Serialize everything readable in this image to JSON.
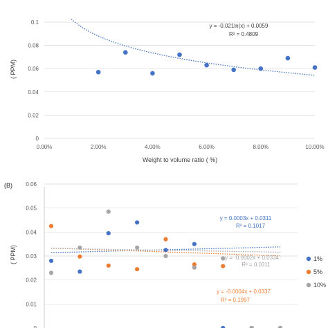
{
  "colors": {
    "blue": "#4472c4",
    "orange": "#ed7d31",
    "gray": "#a5a5a5",
    "grid": "#d9d9d9",
    "text": "#595959"
  },
  "chart_data": [
    {
      "type": "scatter",
      "panel_label": "",
      "xlabel": "Weight to volume ratio ( %)",
      "ylabel": "( PPM)",
      "xlim": [
        0,
        0.1
      ],
      "ylim": [
        0,
        0.1
      ],
      "x_ticks": [
        "0.00%",
        "2.00%",
        "4.00%",
        "6.00%",
        "8.00%",
        "10.00%"
      ],
      "y_ticks": [
        "0",
        "0.02",
        "0.04",
        "0.06",
        "0.08",
        "0.1"
      ],
      "grid": "horizontal",
      "series": [
        {
          "color": "#4472c4",
          "x": [
            0.02,
            0.03,
            0.04,
            0.05,
            0.06,
            0.07,
            0.08,
            0.09,
            0.1
          ],
          "y": [
            0.057,
            0.074,
            0.056,
            0.072,
            0.063,
            0.059,
            0.06,
            0.069,
            0.061
          ],
          "trendline": {
            "kind": "log",
            "a": -0.021,
            "b": 0.0059,
            "x_range": [
              0.01,
              0.1
            ],
            "equation": "y = -0.021ln(x) + 0.0059",
            "r2": "R² = 0.4809"
          }
        }
      ]
    },
    {
      "type": "scatter",
      "panel_label": "(B)",
      "xlabel": "",
      "ylabel": "( PPM)",
      "ylim": [
        0,
        0.06
      ],
      "y_ticks": [
        "0",
        "0.01",
        "0.02",
        "0.03",
        "0.04",
        "0.05",
        "0.06"
      ],
      "grid": "horizontal",
      "legend_position": "right",
      "series": [
        {
          "name": "1%",
          "color": "#4472c4",
          "x": [
            1,
            2,
            3,
            4,
            5,
            6,
            7,
            8,
            9
          ],
          "y": [
            0.028,
            0.0235,
            0.0395,
            0.044,
            0.0325,
            0.035,
            0,
            0,
            0
          ],
          "trendline": {
            "kind": "linear",
            "m": 0.0003,
            "b": 0.0311,
            "equation": "y = 0.0003x + 0.0311",
            "r2": "R² = 0.1017"
          }
        },
        {
          "name": "5%",
          "color": "#ed7d31",
          "x": [
            1,
            2,
            3,
            4,
            5,
            6,
            7,
            8,
            9
          ],
          "y": [
            0.0425,
            0.0298,
            0.026,
            0.0245,
            0.037,
            0.0265,
            0.0258,
            0,
            0
          ],
          "trendline": {
            "kind": "linear",
            "m": -0.0004,
            "b": 0.0337,
            "equation": "y = -0.0004x + 0.0337",
            "r2": "R² = 0.1997"
          }
        },
        {
          "name": "10%",
          "color": "#a5a5a5",
          "x": [
            1,
            2,
            3,
            4,
            5,
            6,
            7,
            8,
            9
          ],
          "y": [
            0.023,
            0.0335,
            0.0485,
            0.0335,
            0.03,
            0.0252,
            0.029,
            0,
            0
          ],
          "trendline": {
            "kind": "linear",
            "m": -0.0002,
            "b": 0.0334,
            "equation": "y = -0.0002x + 0.0334",
            "r2": "R² = 0.0311"
          }
        }
      ]
    }
  ]
}
